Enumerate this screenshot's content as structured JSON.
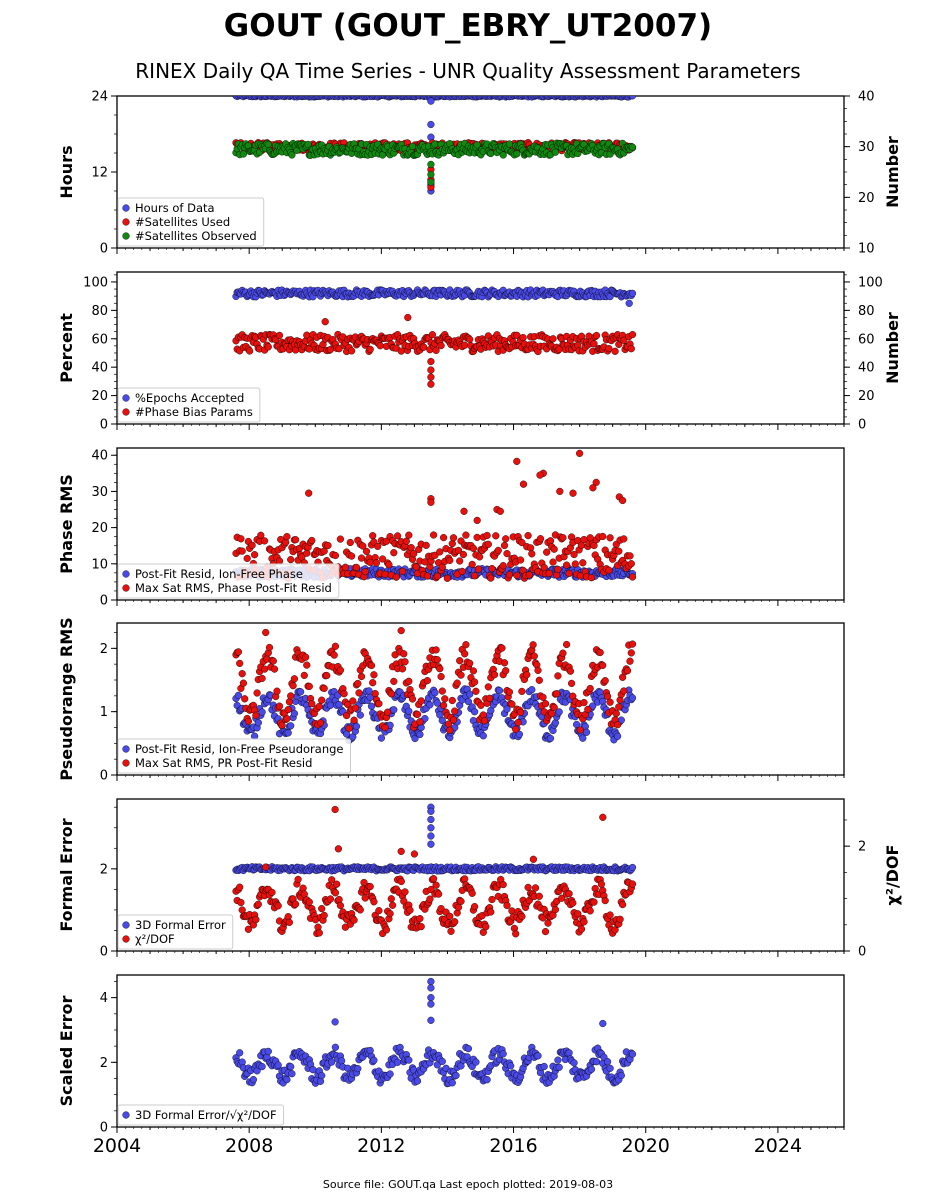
{
  "title": "GOUT (GOUT_EBRY_UT2007)",
  "subtitle": "RINEX Daily QA Time Series - UNR Quality Assessment Parameters",
  "footer": "Source file: GOUT.qa Last epoch plotted: 2019-08-03",
  "colors": {
    "blue": "#4a4ae8",
    "red": "#e8100c",
    "green": "#11880f",
    "dark": "#101040"
  },
  "x_axis": {
    "range": [
      2004,
      2026
    ],
    "ticks": [
      "2004",
      "2008",
      "2012",
      "2016",
      "2020",
      "2024"
    ]
  },
  "chart_data": [
    {
      "type": "scatter",
      "ylabel": "Hours",
      "ylabel_right": "Number",
      "ylim": [
        0,
        24
      ],
      "yticks": [
        "0",
        "12",
        "24"
      ],
      "ylim_right": [
        10,
        40
      ],
      "yticks_right": [
        "10",
        "20",
        "30",
        "40"
      ],
      "series": [
        {
          "name": "Hours of Data",
          "color": "#4a4ae8",
          "axis": "left",
          "base": 24,
          "spread": 0.15,
          "outliers": [
            [
              2013.5,
              23.2
            ],
            [
              2013.5,
              19.5
            ],
            [
              2013.5,
              17.5
            ],
            [
              2013.5,
              9.0
            ],
            [
              2013.5,
              10.0
            ]
          ]
        },
        {
          "name": "#Satellites Used",
          "color": "#e8100c",
          "axis": "right",
          "base": 30,
          "spread": 0.8,
          "outliers": [
            [
              2009.8,
              30.2
            ],
            [
              2013.5,
              25.5
            ],
            [
              2013.5,
              23.5
            ],
            [
              2013.5,
              22.0
            ]
          ]
        },
        {
          "name": "#Satellites Observed",
          "color": "#11880f",
          "axis": "right",
          "base": 29.5,
          "spread": 1.2,
          "outliers": [
            [
              2013.5,
              26.5
            ],
            [
              2013.5,
              24.5
            ],
            [
              2013.5,
              23.0
            ]
          ]
        }
      ]
    },
    {
      "type": "scatter",
      "ylabel": "Percent",
      "ylabel_right": "Number",
      "ylim": [
        0,
        107
      ],
      "yticks": [
        "0",
        "20",
        "40",
        "60",
        "80",
        "100"
      ],
      "ylim_right": [
        0,
        107
      ],
      "yticks_right": [
        "0",
        "20",
        "40",
        "60",
        "80",
        "100"
      ],
      "series": [
        {
          "name": "%Epochs Accepted",
          "color": "#4a4ae8",
          "axis": "left",
          "base": 92,
          "spread": 2.5,
          "outliers": [
            [
              2019.5,
              85
            ]
          ]
        },
        {
          "name": "#Phase Bias Params",
          "color": "#e8100c",
          "axis": "right",
          "base": 57,
          "spread": 6,
          "outliers": [
            [
              2012.8,
              75
            ],
            [
              2010.3,
              72
            ],
            [
              2013.5,
              38
            ],
            [
              2013.5,
              33
            ],
            [
              2013.5,
              28
            ],
            [
              2013.5,
              44
            ]
          ]
        }
      ]
    },
    {
      "type": "scatter",
      "ylabel": "Phase RMS",
      "ylim": [
        0,
        42
      ],
      "yticks": [
        "0",
        "10",
        "20",
        "30",
        "40"
      ],
      "series": [
        {
          "name": "Post-Fit Resid, Ion-Free Phase",
          "color": "#4a4ae8",
          "axis": "left",
          "base": 7.5,
          "spread": 1.2,
          "outliers": []
        },
        {
          "name": "Max Sat RMS, Phase Post-Fit Resid",
          "color": "#e8100c",
          "axis": "left",
          "base": 12,
          "spread": 6,
          "outliers": [
            [
              2018.0,
              40.5
            ],
            [
              2016.1,
              38.3
            ],
            [
              2016.9,
              35
            ],
            [
              2016.8,
              34.5
            ],
            [
              2016.3,
              32
            ],
            [
              2018.5,
              32.5
            ],
            [
              2018.4,
              31
            ],
            [
              2017.4,
              30
            ],
            [
              2009.8,
              29.5
            ],
            [
              2017.8,
              29.5
            ],
            [
              2019.2,
              28.5
            ],
            [
              2019.3,
              27.5
            ],
            [
              2015.5,
              25
            ],
            [
              2015.6,
              24.5
            ],
            [
              2013.5,
              28
            ],
            [
              2013.5,
              27
            ],
            [
              2014.9,
              22
            ],
            [
              2014.5,
              24.5
            ]
          ]
        }
      ]
    },
    {
      "type": "scatter",
      "ylabel": "Pseudorange RMS",
      "ylim": [
        0,
        2.4
      ],
      "yticks": [
        "0",
        "1",
        "2"
      ],
      "series": [
        {
          "name": "Post-Fit Resid, Ion-Free Pseudorange",
          "color": "#4a4ae8",
          "axis": "left",
          "seasonal": [
            0.95,
            0.3
          ],
          "spread": 0.12,
          "outliers": []
        },
        {
          "name": "Max Sat RMS, PR Post-Fit Resid",
          "color": "#e8100c",
          "axis": "left",
          "seasonal": [
            1.4,
            0.5
          ],
          "spread": 0.2,
          "outliers": [
            [
              2012.6,
              2.28
            ],
            [
              2008.5,
              2.25
            ]
          ]
        }
      ]
    },
    {
      "type": "scatter",
      "ylabel": "Formal Error",
      "ylabel_right": "χ²/DOF",
      "ylim": [
        0,
        3.7
      ],
      "yticks": [
        "0",
        "2"
      ],
      "ylim_right": [
        0,
        2.9
      ],
      "yticks_right": [
        "0",
        "2"
      ],
      "series": [
        {
          "name": "3D Formal Error",
          "color": "#4a4ae8",
          "axis": "left",
          "base": 2.0,
          "spread": 0.05,
          "outliers": [
            [
              2013.5,
              3.5
            ],
            [
              2013.5,
              3.4
            ],
            [
              2013.5,
              3.2
            ],
            [
              2013.5,
              3.0
            ],
            [
              2013.5,
              2.8
            ],
            [
              2013.5,
              2.6
            ]
          ]
        },
        {
          "name": "χ²/DOF",
          "color": "#e8100c",
          "axis": "right",
          "seasonal": [
            0.85,
            0.35
          ],
          "spread": 0.2,
          "outliers": [
            [
              2010.6,
              2.7
            ],
            [
              2018.7,
              2.55
            ],
            [
              2010.7,
              1.95
            ],
            [
              2008.5,
              1.6
            ],
            [
              2012.6,
              1.9
            ],
            [
              2013.0,
              1.85
            ],
            [
              2016.6,
              1.75
            ]
          ]
        }
      ]
    },
    {
      "type": "scatter",
      "ylabel": "Scaled Error",
      "ylim": [
        0,
        4.7
      ],
      "yticks": [
        "0",
        "2",
        "4"
      ],
      "series": [
        {
          "name": "3D Formal Error/√χ²/DOF",
          "color": "#4a4ae8",
          "axis": "left",
          "seasonal": [
            1.9,
            0.35
          ],
          "spread": 0.25,
          "outliers": [
            [
              2013.5,
              4.5
            ],
            [
              2013.5,
              4.3
            ],
            [
              2013.5,
              4.0
            ],
            [
              2013.5,
              3.8
            ],
            [
              2013.5,
              3.3
            ],
            [
              2010.6,
              3.25
            ],
            [
              2018.7,
              3.2
            ]
          ]
        }
      ]
    }
  ]
}
